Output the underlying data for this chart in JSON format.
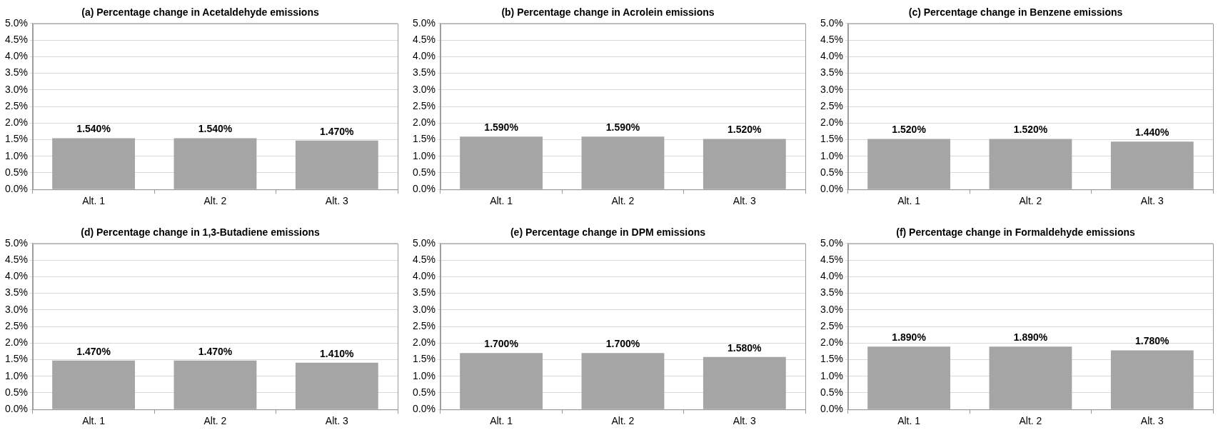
{
  "chart_data": [
    {
      "type": "bar",
      "title": "(a) Percentage change in Acetaldehyde emissions",
      "categories": [
        "Alt. 1",
        "Alt. 2",
        "Alt. 3"
      ],
      "values": [
        1.54,
        1.54,
        1.47
      ],
      "value_labels": [
        "1.540%",
        "1.540%",
        "1.470%"
      ],
      "color": "#a5a5a5",
      "ylim": [
        0,
        5
      ],
      "yticks": [
        {
          "value": 0,
          "label": "0.0%"
        },
        {
          "value": 0.5,
          "label": "0.5%"
        },
        {
          "value": 1,
          "label": "1.0%"
        },
        {
          "value": 1.5,
          "label": "1.5%"
        },
        {
          "value": 2,
          "label": "2.0%"
        },
        {
          "value": 2.5,
          "label": "2.5%"
        },
        {
          "value": 3,
          "label": "3.0%"
        },
        {
          "value": 3.5,
          "label": "3.5%"
        },
        {
          "value": 4,
          "label": "4.0%"
        },
        {
          "value": 4.5,
          "label": "4.5%"
        },
        {
          "value": 5,
          "label": "5.0%"
        }
      ],
      "grid": "y",
      "legend": false
    },
    {
      "type": "bar",
      "title": "(b) Percentage change in Acrolein emissions",
      "categories": [
        "Alt. 1",
        "Alt. 2",
        "Alt. 3"
      ],
      "values": [
        1.59,
        1.59,
        1.52
      ],
      "value_labels": [
        "1.590%",
        "1.590%",
        "1.520%"
      ],
      "color": "#a5a5a5",
      "ylim": [
        0,
        5
      ],
      "yticks": [
        {
          "value": 0,
          "label": "0.0%"
        },
        {
          "value": 0.5,
          "label": "0.5%"
        },
        {
          "value": 1,
          "label": "1.0%"
        },
        {
          "value": 1.5,
          "label": "1.5%"
        },
        {
          "value": 2,
          "label": "2.0%"
        },
        {
          "value": 2.5,
          "label": "2.5%"
        },
        {
          "value": 3,
          "label": "3.0%"
        },
        {
          "value": 3.5,
          "label": "3.5%"
        },
        {
          "value": 4,
          "label": "4.0%"
        },
        {
          "value": 4.5,
          "label": "4.5%"
        },
        {
          "value": 5,
          "label": "5.0%"
        }
      ],
      "grid": "y",
      "legend": false
    },
    {
      "type": "bar",
      "title": "(c) Percentage change in Benzene emissions",
      "categories": [
        "Alt. 1",
        "Alt. 2",
        "Alt. 3"
      ],
      "values": [
        1.52,
        1.52,
        1.44
      ],
      "value_labels": [
        "1.520%",
        "1.520%",
        "1.440%"
      ],
      "color": "#a5a5a5",
      "ylim": [
        0,
        5
      ],
      "yticks": [
        {
          "value": 0,
          "label": "0.0%"
        },
        {
          "value": 0.5,
          "label": "0.5%"
        },
        {
          "value": 1,
          "label": "1.0%"
        },
        {
          "value": 1.5,
          "label": "1.5%"
        },
        {
          "value": 2,
          "label": "2.0%"
        },
        {
          "value": 2.5,
          "label": "2.5%"
        },
        {
          "value": 3,
          "label": "3.0%"
        },
        {
          "value": 3.5,
          "label": "3.5%"
        },
        {
          "value": 4,
          "label": "4.0%"
        },
        {
          "value": 4.5,
          "label": "4.5%"
        },
        {
          "value": 5,
          "label": "5.0%"
        }
      ],
      "grid": "y",
      "legend": false
    },
    {
      "type": "bar",
      "title": "(d) Percentage change in 1,3-Butadiene emissions",
      "categories": [
        "Alt. 1",
        "Alt. 2",
        "Alt. 3"
      ],
      "values": [
        1.47,
        1.47,
        1.41
      ],
      "value_labels": [
        "1.470%",
        "1.470%",
        "1.410%"
      ],
      "color": "#a5a5a5",
      "ylim": [
        0,
        5
      ],
      "yticks": [
        {
          "value": 0,
          "label": "0.0%"
        },
        {
          "value": 0.5,
          "label": "0.5%"
        },
        {
          "value": 1,
          "label": "1.0%"
        },
        {
          "value": 1.5,
          "label": "1.5%"
        },
        {
          "value": 2,
          "label": "2.0%"
        },
        {
          "value": 2.5,
          "label": "2.5%"
        },
        {
          "value": 3,
          "label": "3.0%"
        },
        {
          "value": 3.5,
          "label": "3.5%"
        },
        {
          "value": 4,
          "label": "4.0%"
        },
        {
          "value": 4.5,
          "label": "4.5%"
        },
        {
          "value": 5,
          "label": "5.0%"
        }
      ],
      "grid": "y",
      "legend": false
    },
    {
      "type": "bar",
      "title": "(e) Percentage change in DPM emissions",
      "categories": [
        "Alt. 1",
        "Alt. 2",
        "Alt. 3"
      ],
      "values": [
        1.7,
        1.7,
        1.58
      ],
      "value_labels": [
        "1.700%",
        "1.700%",
        "1.580%"
      ],
      "color": "#a5a5a5",
      "ylim": [
        0,
        5
      ],
      "yticks": [
        {
          "value": 0,
          "label": "0.0%"
        },
        {
          "value": 0.5,
          "label": "0.5%"
        },
        {
          "value": 1,
          "label": "1.0%"
        },
        {
          "value": 1.5,
          "label": "1.5%"
        },
        {
          "value": 2,
          "label": "2.0%"
        },
        {
          "value": 2.5,
          "label": "2.5%"
        },
        {
          "value": 3,
          "label": "3.0%"
        },
        {
          "value": 3.5,
          "label": "3.5%"
        },
        {
          "value": 4,
          "label": "4.0%"
        },
        {
          "value": 4.5,
          "label": "4.5%"
        },
        {
          "value": 5,
          "label": "5.0%"
        }
      ],
      "grid": "y",
      "legend": false
    },
    {
      "type": "bar",
      "title": "(f) Percentage change in Formaldehyde emissions",
      "categories": [
        "Alt. 1",
        "Alt. 2",
        "Alt. 3"
      ],
      "values": [
        1.89,
        1.89,
        1.78
      ],
      "value_labels": [
        "1.890%",
        "1.890%",
        "1.780%"
      ],
      "color": "#a5a5a5",
      "ylim": [
        0,
        5
      ],
      "yticks": [
        {
          "value": 0,
          "label": "0.0%"
        },
        {
          "value": 0.5,
          "label": "0.5%"
        },
        {
          "value": 1,
          "label": "1.0%"
        },
        {
          "value": 1.5,
          "label": "1.5%"
        },
        {
          "value": 2,
          "label": "2.0%"
        },
        {
          "value": 2.5,
          "label": "2.5%"
        },
        {
          "value": 3,
          "label": "3.0%"
        },
        {
          "value": 3.5,
          "label": "3.5%"
        },
        {
          "value": 4,
          "label": "4.0%"
        },
        {
          "value": 4.5,
          "label": "4.5%"
        },
        {
          "value": 5,
          "label": "5.0%"
        }
      ],
      "grid": "y",
      "legend": false
    }
  ]
}
